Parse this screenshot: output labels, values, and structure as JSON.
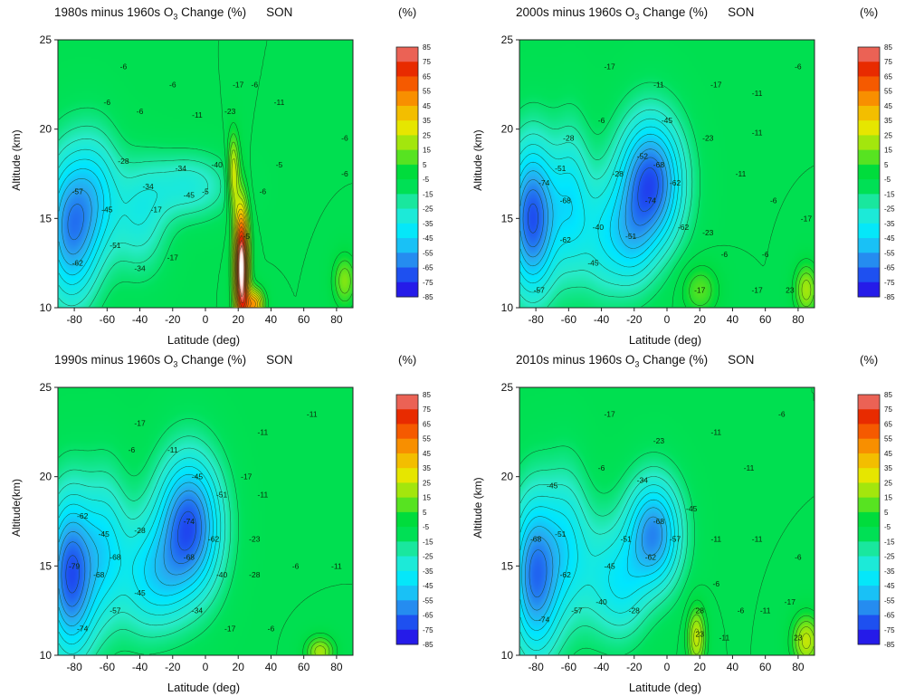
{
  "figure": {
    "colorbar": {
      "title": "(%)",
      "ticks": [
        85,
        75,
        65,
        55,
        45,
        35,
        25,
        15,
        5,
        -5,
        -15,
        -25,
        -35,
        -45,
        -55,
        -65,
        -75,
        -85
      ]
    },
    "panels": [
      {
        "title_pre": "1980s minus 1960s O",
        "title_sub": "3",
        "title_post": " Change (%)",
        "season": "SON",
        "ylabel": "Altitude (km)",
        "xlabel": "Latitude (deg)"
      },
      {
        "title_pre": "2000s minus 1960s O",
        "title_sub": "3",
        "title_post": " Change (%)",
        "season": "SON",
        "ylabel": "Altitude (km)",
        "xlabel": "Latitude (deg)"
      },
      {
        "title_pre": "1990s minus 1960s O",
        "title_sub": "3",
        "title_post": " Change (%)",
        "season": "SON",
        "ylabel": "Altitude(km)",
        "xlabel": "Latitude (deg)"
      },
      {
        "title_pre": "2010s minus 1960s O",
        "title_sub": "3",
        "title_post": " Change (%)",
        "season": "SON",
        "ylabel": "Altitude (km)",
        "xlabel": "Latitude (deg)"
      }
    ]
  },
  "chart_data": [
    {
      "type": "heatmap",
      "title": "1980s minus 1960s O3 Change (%) SON",
      "xlabel": "Latitude (deg)",
      "ylabel": "Altitude (km)",
      "xlim": [
        -90,
        90
      ],
      "ylim": [
        10,
        25
      ],
      "xticks": [
        -80,
        -60,
        -40,
        -20,
        0,
        20,
        40,
        60,
        80
      ],
      "yticks": [
        10,
        15,
        20,
        25
      ],
      "colorbar": {
        "label": "(%)",
        "range": [
          -85,
          85
        ]
      },
      "features": [
        {
          "lat": -82,
          "alt": 14.5,
          "value": -60,
          "sx": 12,
          "sy": 3.0
        },
        {
          "lat": -65,
          "alt": 16.5,
          "value": -30,
          "sx": 10,
          "sy": 2.5
        },
        {
          "lat": -40,
          "alt": 15.0,
          "value": -30,
          "sx": 12,
          "sy": 2.2
        },
        {
          "lat": -10,
          "alt": 16.8,
          "value": -30,
          "sx": 18,
          "sy": 1.3
        },
        {
          "lat": 22,
          "alt": 12.2,
          "value": 95,
          "sx": 3.2,
          "sy": 2.5
        },
        {
          "lat": 17,
          "alt": 17.5,
          "value": 30,
          "sx": 2.5,
          "sy": 1.5
        },
        {
          "lat": 30,
          "alt": 10.2,
          "value": 45,
          "sx": 4,
          "sy": 0.6
        },
        {
          "lat": 85,
          "alt": 11.5,
          "value": 15,
          "sx": 5,
          "sy": 1.0
        }
      ],
      "labels": [
        {
          "lat": -78,
          "alt": 16.5,
          "text": "-57"
        },
        {
          "lat": -78,
          "alt": 12.5,
          "text": "-62"
        },
        {
          "lat": -60,
          "alt": 15.5,
          "text": "-45"
        },
        {
          "lat": -55,
          "alt": 13.5,
          "text": "-51"
        },
        {
          "lat": -50,
          "alt": 18.2,
          "text": "-28"
        },
        {
          "lat": -35,
          "alt": 16.8,
          "text": "-34"
        },
        {
          "lat": -40,
          "alt": 12.2,
          "text": "-34"
        },
        {
          "lat": -30,
          "alt": 15.5,
          "text": "-17"
        },
        {
          "lat": -20,
          "alt": 12.8,
          "text": "-17"
        },
        {
          "lat": -10,
          "alt": 16.3,
          "text": "-45"
        },
        {
          "lat": -15,
          "alt": 17.8,
          "text": "-34"
        },
        {
          "lat": 0,
          "alt": 16.5,
          "text": "-5"
        },
        {
          "lat": 7,
          "alt": 18.0,
          "text": "-40"
        },
        {
          "lat": -5,
          "alt": 20.8,
          "text": "-11"
        },
        {
          "lat": 15,
          "alt": 21.0,
          "text": "-23"
        },
        {
          "lat": 30,
          "alt": 22.5,
          "text": "-6"
        },
        {
          "lat": -50,
          "alt": 23.5,
          "text": "-6"
        },
        {
          "lat": -40,
          "alt": 21.0,
          "text": "-6"
        },
        {
          "lat": -20,
          "alt": 22.5,
          "text": "-6"
        },
        {
          "lat": -60,
          "alt": 21.5,
          "text": "-6"
        },
        {
          "lat": 20,
          "alt": 22.5,
          "text": "-17"
        },
        {
          "lat": 45,
          "alt": 21.5,
          "text": "-11"
        },
        {
          "lat": 45,
          "alt": 18.0,
          "text": "-5"
        },
        {
          "lat": 85,
          "alt": 17.5,
          "text": "-6"
        },
        {
          "lat": 25,
          "alt": 14.0,
          "text": "-5"
        },
        {
          "lat": 35,
          "alt": 16.5,
          "text": "-6"
        },
        {
          "lat": 85,
          "alt": 19.5,
          "text": "-6"
        }
      ]
    },
    {
      "type": "heatmap",
      "title": "2000s minus 1960s O3 Change (%) SON",
      "xlabel": "Latitude (deg)",
      "ylabel": "Altitude (km)",
      "xlim": [
        -90,
        90
      ],
      "ylim": [
        10,
        25
      ],
      "xticks": [
        -80,
        -60,
        -40,
        -20,
        0,
        20,
        40,
        60,
        80
      ],
      "yticks": [
        10,
        15,
        20,
        25
      ],
      "colorbar": {
        "label": "(%)",
        "range": [
          -85,
          85
        ]
      },
      "features": [
        {
          "lat": -82,
          "alt": 15.0,
          "value": -70,
          "sx": 11,
          "sy": 3.0
        },
        {
          "lat": -58,
          "alt": 16.0,
          "value": -35,
          "sx": 8,
          "sy": 3.0
        },
        {
          "lat": -40,
          "alt": 14.0,
          "value": -30,
          "sx": 10,
          "sy": 2.5
        },
        {
          "lat": -10,
          "alt": 17.0,
          "value": -70,
          "sx": 14,
          "sy": 2.6
        },
        {
          "lat": -22,
          "alt": 13.5,
          "value": -30,
          "sx": 10,
          "sy": 2.0
        },
        {
          "lat": 85,
          "alt": 11.0,
          "value": 20,
          "sx": 5,
          "sy": 1.0
        },
        {
          "lat": 20,
          "alt": 11.0,
          "value": 10,
          "sx": 8,
          "sy": 1.0
        }
      ],
      "labels": [
        {
          "lat": -75,
          "alt": 17.0,
          "text": "-74"
        },
        {
          "lat": -62,
          "alt": 16.0,
          "text": "-68"
        },
        {
          "lat": -65,
          "alt": 17.8,
          "text": "-51"
        },
        {
          "lat": -62,
          "alt": 13.8,
          "text": "-62"
        },
        {
          "lat": -78,
          "alt": 11.0,
          "text": "-57"
        },
        {
          "lat": -45,
          "alt": 12.5,
          "text": "-45"
        },
        {
          "lat": -42,
          "alt": 14.5,
          "text": "-40"
        },
        {
          "lat": -60,
          "alt": 19.5,
          "text": "-28"
        },
        {
          "lat": -30,
          "alt": 17.5,
          "text": "-28"
        },
        {
          "lat": -22,
          "alt": 14.0,
          "text": "-51"
        },
        {
          "lat": -15,
          "alt": 18.5,
          "text": "-52"
        },
        {
          "lat": -5,
          "alt": 18.0,
          "text": "-68"
        },
        {
          "lat": -10,
          "alt": 16.0,
          "text": "-74"
        },
        {
          "lat": 5,
          "alt": 17.0,
          "text": "-62"
        },
        {
          "lat": 0,
          "alt": 20.5,
          "text": "-45"
        },
        {
          "lat": 10,
          "alt": 14.5,
          "text": "-62"
        },
        {
          "lat": 25,
          "alt": 19.5,
          "text": "-23"
        },
        {
          "lat": 25,
          "alt": 14.2,
          "text": "-23"
        },
        {
          "lat": -35,
          "alt": 23.5,
          "text": "-17"
        },
        {
          "lat": -40,
          "alt": 20.5,
          "text": "-6"
        },
        {
          "lat": 30,
          "alt": 22.5,
          "text": "-17"
        },
        {
          "lat": 55,
          "alt": 22.0,
          "text": "-11"
        },
        {
          "lat": 55,
          "alt": 19.8,
          "text": "-11"
        },
        {
          "lat": 45,
          "alt": 17.5,
          "text": "-11"
        },
        {
          "lat": 80,
          "alt": 23.5,
          "text": "-6"
        },
        {
          "lat": 65,
          "alt": 16.0,
          "text": "-6"
        },
        {
          "lat": 35,
          "alt": 13.0,
          "text": "-6"
        },
        {
          "lat": 60,
          "alt": 13.0,
          "text": "-6"
        },
        {
          "lat": 55,
          "alt": 11.0,
          "text": "-17"
        },
        {
          "lat": 75,
          "alt": 11.0,
          "text": "23"
        },
        {
          "lat": 20,
          "alt": 11.0,
          "text": "-17"
        },
        {
          "lat": -5,
          "alt": 22.5,
          "text": "-11"
        },
        {
          "lat": 85,
          "alt": 15.0,
          "text": "-17"
        }
      ]
    },
    {
      "type": "heatmap",
      "title": "1990s minus 1960s O3 Change (%) SON",
      "xlabel": "Latitude (deg)",
      "ylabel": "Altitude(km)",
      "xlim": [
        -90,
        90
      ],
      "ylim": [
        10,
        25
      ],
      "xticks": [
        -80,
        -60,
        -40,
        -20,
        0,
        20,
        40,
        60,
        80
      ],
      "yticks": [
        10,
        15,
        20,
        25
      ],
      "colorbar": {
        "label": "(%)",
        "range": [
          -85,
          85
        ]
      },
      "features": [
        {
          "lat": -82,
          "alt": 14.5,
          "value": -70,
          "sx": 11,
          "sy": 3.2
        },
        {
          "lat": -60,
          "alt": 16.0,
          "value": -35,
          "sx": 9,
          "sy": 3.0
        },
        {
          "lat": -40,
          "alt": 14.5,
          "value": -30,
          "sx": 10,
          "sy": 2.5
        },
        {
          "lat": -10,
          "alt": 17.2,
          "value": -70,
          "sx": 14,
          "sy": 2.8
        },
        {
          "lat": -25,
          "alt": 14.0,
          "value": -25,
          "sx": 10,
          "sy": 2.0
        },
        {
          "lat": 70,
          "alt": 10.2,
          "value": 20,
          "sx": 6,
          "sy": 0.6
        }
      ],
      "labels": [
        {
          "lat": -75,
          "alt": 17.8,
          "text": "-62"
        },
        {
          "lat": -62,
          "alt": 16.8,
          "text": "-45"
        },
        {
          "lat": -80,
          "alt": 15.0,
          "text": "-79"
        },
        {
          "lat": -55,
          "alt": 15.5,
          "text": "-68"
        },
        {
          "lat": -65,
          "alt": 14.5,
          "text": "-68"
        },
        {
          "lat": -75,
          "alt": 11.5,
          "text": "-74"
        },
        {
          "lat": -55,
          "alt": 12.5,
          "text": "-57"
        },
        {
          "lat": -40,
          "alt": 13.5,
          "text": "-45"
        },
        {
          "lat": -40,
          "alt": 17.0,
          "text": "-28"
        },
        {
          "lat": -10,
          "alt": 17.5,
          "text": "-74"
        },
        {
          "lat": -10,
          "alt": 15.5,
          "text": "-68"
        },
        {
          "lat": 5,
          "alt": 16.5,
          "text": "-62"
        },
        {
          "lat": -5,
          "alt": 20.0,
          "text": "-45"
        },
        {
          "lat": 10,
          "alt": 19.0,
          "text": "-51"
        },
        {
          "lat": 10,
          "alt": 14.5,
          "text": "-40"
        },
        {
          "lat": -5,
          "alt": 12.5,
          "text": "-34"
        },
        {
          "lat": 30,
          "alt": 16.5,
          "text": "-23"
        },
        {
          "lat": 30,
          "alt": 14.5,
          "text": "-28"
        },
        {
          "lat": 25,
          "alt": 20.0,
          "text": "-17"
        },
        {
          "lat": -40,
          "alt": 23.0,
          "text": "-17"
        },
        {
          "lat": -45,
          "alt": 21.5,
          "text": "-6"
        },
        {
          "lat": -20,
          "alt": 21.5,
          "text": "-11"
        },
        {
          "lat": 35,
          "alt": 22.5,
          "text": "-11"
        },
        {
          "lat": 35,
          "alt": 19.0,
          "text": "-11"
        },
        {
          "lat": 65,
          "alt": 23.5,
          "text": "-11"
        },
        {
          "lat": 55,
          "alt": 15.0,
          "text": "-6"
        },
        {
          "lat": 80,
          "alt": 15.0,
          "text": "-11"
        },
        {
          "lat": 40,
          "alt": 11.5,
          "text": "-6"
        },
        {
          "lat": 15,
          "alt": 11.5,
          "text": "-17"
        }
      ]
    },
    {
      "type": "heatmap",
      "title": "2010s minus 1960s O3 Change (%) SON",
      "xlabel": "Latitude (deg)",
      "ylabel": "Altitude (km)",
      "xlim": [
        -90,
        90
      ],
      "ylim": [
        10,
        25
      ],
      "xticks": [
        -80,
        -60,
        -40,
        -20,
        0,
        20,
        40,
        60,
        80
      ],
      "yticks": [
        10,
        15,
        20,
        25
      ],
      "colorbar": {
        "label": "(%)",
        "range": [
          -85,
          85
        ]
      },
      "features": [
        {
          "lat": -80,
          "alt": 14.5,
          "value": -65,
          "sx": 11,
          "sy": 3.2
        },
        {
          "lat": -60,
          "alt": 16.5,
          "value": -30,
          "sx": 9,
          "sy": 3.0
        },
        {
          "lat": -40,
          "alt": 14.5,
          "value": -28,
          "sx": 12,
          "sy": 2.5
        },
        {
          "lat": -8,
          "alt": 16.8,
          "value": -60,
          "sx": 12,
          "sy": 2.2
        },
        {
          "lat": -25,
          "alt": 13.5,
          "value": -25,
          "sx": 10,
          "sy": 2.0
        },
        {
          "lat": 18,
          "alt": 11.0,
          "value": 25,
          "sx": 4,
          "sy": 1.2
        },
        {
          "lat": 85,
          "alt": 10.8,
          "value": 25,
          "sx": 6,
          "sy": 1.0
        }
      ],
      "labels": [
        {
          "lat": -80,
          "alt": 16.5,
          "text": "-68"
        },
        {
          "lat": -65,
          "alt": 16.8,
          "text": "-51"
        },
        {
          "lat": -62,
          "alt": 14.5,
          "text": "-62"
        },
        {
          "lat": -75,
          "alt": 12.0,
          "text": "-74"
        },
        {
          "lat": -55,
          "alt": 12.5,
          "text": "-57"
        },
        {
          "lat": -40,
          "alt": 13.0,
          "text": "-40"
        },
        {
          "lat": -35,
          "alt": 15.0,
          "text": "-45"
        },
        {
          "lat": -25,
          "alt": 16.5,
          "text": "-51"
        },
        {
          "lat": -5,
          "alt": 17.5,
          "text": "-68"
        },
        {
          "lat": 5,
          "alt": 16.5,
          "text": "-57"
        },
        {
          "lat": -10,
          "alt": 15.5,
          "text": "-62"
        },
        {
          "lat": 15,
          "alt": 18.2,
          "text": "-45"
        },
        {
          "lat": -15,
          "alt": 19.8,
          "text": "-34"
        },
        {
          "lat": -70,
          "alt": 19.5,
          "text": "-45"
        },
        {
          "lat": -20,
          "alt": 12.5,
          "text": "-28"
        },
        {
          "lat": 20,
          "alt": 12.5,
          "text": "28"
        },
        {
          "lat": 20,
          "alt": 11.2,
          "text": "23"
        },
        {
          "lat": 30,
          "alt": 16.5,
          "text": "-11"
        },
        {
          "lat": 30,
          "alt": 14.0,
          "text": "-6"
        },
        {
          "lat": 45,
          "alt": 12.5,
          "text": "-6"
        },
        {
          "lat": 55,
          "alt": 16.5,
          "text": "-11"
        },
        {
          "lat": 60,
          "alt": 12.5,
          "text": "-11"
        },
        {
          "lat": 80,
          "alt": 11.0,
          "text": "23"
        },
        {
          "lat": 75,
          "alt": 13.0,
          "text": "-17"
        },
        {
          "lat": -35,
          "alt": 23.5,
          "text": "-17"
        },
        {
          "lat": -40,
          "alt": 20.5,
          "text": "-6"
        },
        {
          "lat": -5,
          "alt": 22.0,
          "text": "-23"
        },
        {
          "lat": 30,
          "alt": 22.5,
          "text": "-11"
        },
        {
          "lat": 50,
          "alt": 20.5,
          "text": "-11"
        },
        {
          "lat": 70,
          "alt": 23.5,
          "text": "-6"
        },
        {
          "lat": 80,
          "alt": 15.5,
          "text": "-6"
        },
        {
          "lat": 35,
          "alt": 11.0,
          "text": "-11"
        }
      ]
    }
  ]
}
